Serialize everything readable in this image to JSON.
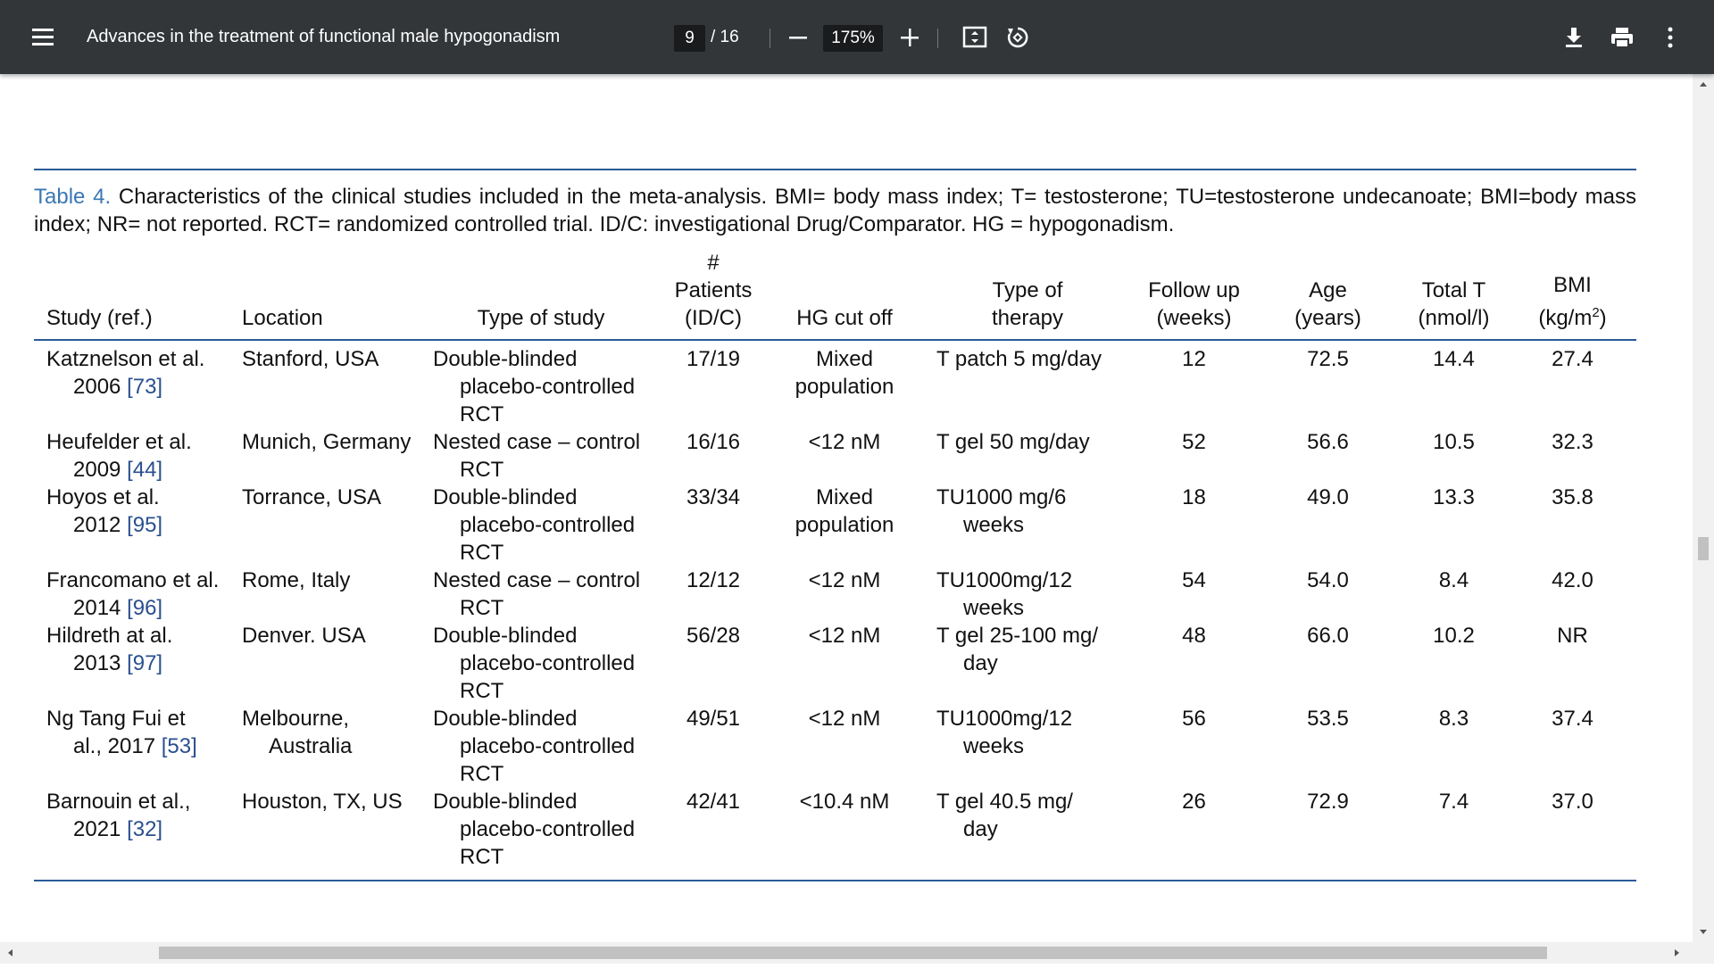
{
  "toolbar": {
    "title": "Advances in the treatment of functional male hypogonadism",
    "page": "9",
    "page_total": "/ 16",
    "zoom": "175%"
  },
  "caption": {
    "label": "Table 4.",
    "text": "Characteristics of the clinical studies included in the meta-analysis. BMI= body mass index; T= testosterone; TU=testosterone undecanoate; BMI=body mass index; NR= not reported. RCT= randomized controlled trial. ID/C: investigational Drug/Comparator. HG = hypogonadism."
  },
  "table": {
    "headers": [
      [
        "Study (ref.)"
      ],
      [
        "Location"
      ],
      [
        "Type of study"
      ],
      [
        "#",
        "Patients",
        "(ID/C)"
      ],
      [
        "HG cut off"
      ],
      [
        "Type of",
        "therapy"
      ],
      [
        "Follow up",
        "(weeks)"
      ],
      [
        "Age",
        "(years)"
      ],
      [
        "Total T",
        "(nmol/l)"
      ],
      {
        "lines": [
          "BMI"
        ],
        "unit": "(kg/m",
        "sup": "2",
        "unit_end": ")"
      }
    ],
    "rows": [
      [
        {
          "lines": [
            "Katznelson et al.",
            "2006"
          ],
          "ref": "[73]"
        },
        [
          "Stanford, USA"
        ],
        [
          "Double-blinded",
          "placebo-controlled",
          "RCT"
        ],
        "17/19",
        [
          "Mixed",
          "population"
        ],
        [
          "T patch 5 mg/day"
        ],
        "12",
        "72.5",
        "14.4",
        "27.4"
      ],
      [
        {
          "lines": [
            "Heufelder et al.",
            "2009"
          ],
          "ref": "[44]"
        },
        [
          "Munich, Germany"
        ],
        [
          "Nested case – control",
          "RCT"
        ],
        "16/16",
        [
          "<12 nM"
        ],
        [
          "T gel 50 mg/day"
        ],
        "52",
        "56.6",
        "10.5",
        "32.3"
      ],
      [
        {
          "lines": [
            "Hoyos et al.",
            "2012"
          ],
          "ref": "[95]"
        },
        [
          "Torrance, USA"
        ],
        [
          "Double-blinded",
          "placebo-controlled",
          "RCT"
        ],
        "33/34",
        [
          "Mixed",
          "population"
        ],
        [
          "TU1000 mg/6",
          "weeks"
        ],
        "18",
        "49.0",
        "13.3",
        "35.8"
      ],
      [
        {
          "lines": [
            "Francomano et al.",
            "2014"
          ],
          "ref": "[96]"
        },
        [
          "Rome, Italy"
        ],
        [
          "Nested case – control",
          "RCT"
        ],
        "12/12",
        [
          "<12 nM"
        ],
        [
          "TU1000mg/12",
          "weeks"
        ],
        "54",
        "54.0",
        "8.4",
        "42.0"
      ],
      [
        {
          "lines": [
            "Hildreth at al.",
            "2013"
          ],
          "ref": "[97]"
        },
        [
          "Denver. USA"
        ],
        [
          "Double-blinded",
          "placebo-controlled",
          "RCT"
        ],
        "56/28",
        [
          "<12 nM"
        ],
        [
          "T gel 25-100 mg/",
          "day"
        ],
        "48",
        "66.0",
        "10.2",
        "NR"
      ],
      [
        {
          "lines": [
            "Ng Tang Fui et",
            "al., 2017"
          ],
          "ref": "[53]"
        },
        [
          "Melbourne,",
          "Australia"
        ],
        [
          "Double-blinded",
          "placebo-controlled",
          "RCT"
        ],
        "49/51",
        [
          "<12 nM"
        ],
        [
          "TU1000mg/12",
          "weeks"
        ],
        "56",
        "53.5",
        "8.3",
        "37.4"
      ],
      [
        {
          "lines": [
            "Barnouin et al.,",
            "2021"
          ],
          "ref": "[32]"
        },
        [
          "Houston, TX, US"
        ],
        [
          "Double-blinded",
          "placebo-controlled",
          "RCT"
        ],
        "42/41",
        [
          "<10.4 nM"
        ],
        [
          "T gel 40.5 mg/",
          "day"
        ],
        "26",
        "72.9",
        "7.4",
        "37.0"
      ]
    ]
  }
}
